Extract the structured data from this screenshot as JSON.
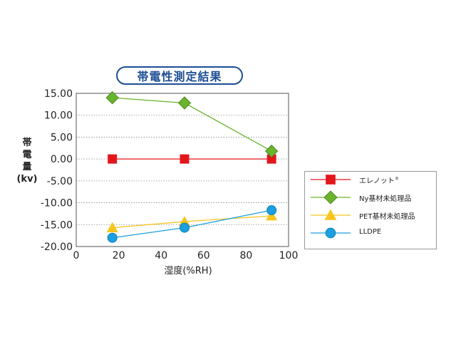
{
  "title": "帯電性測定結果",
  "ylabel_lines": [
    "帯",
    "電",
    "量",
    "(kv)"
  ],
  "chart_data": {
    "type": "line",
    "title": "帯電性測定結果",
    "xlabel": "湿度(%RH)",
    "ylabel": "帯電量(kv)",
    "xlim": [
      0,
      100
    ],
    "ylim": [
      -20,
      15
    ],
    "xticks": [
      "0",
      "20",
      "40",
      "60",
      "80",
      "100"
    ],
    "yticks": [
      "15.00",
      "10.00",
      "5.00",
      "0.00",
      "-5.00",
      "-10.00",
      "-15.00",
      "-20.00"
    ],
    "grid": "horizontal dotted",
    "legend_position": "right",
    "series": [
      {
        "name": "エレノット",
        "superscript": "®",
        "color": "#e3161c",
        "marker": "square",
        "x": [
          17,
          51,
          92
        ],
        "y": [
          0,
          0,
          0
        ]
      },
      {
        "name": "Ny基材未処理品",
        "color": "#6ab42d",
        "marker": "diamond",
        "x": [
          17,
          51,
          92
        ],
        "y": [
          14,
          12.8,
          1.8
        ]
      },
      {
        "name": "PET基材未処理品",
        "color": "#f7c51c",
        "marker": "triangle",
        "x": [
          17,
          51,
          92
        ],
        "y": [
          -15.7,
          -14.3,
          -13
        ]
      },
      {
        "name": "LLDPE",
        "color": "#1aa0e0",
        "marker": "circle",
        "x": [
          17,
          51,
          92
        ],
        "y": [
          -18,
          -15.7,
          -11.7
        ]
      }
    ]
  }
}
